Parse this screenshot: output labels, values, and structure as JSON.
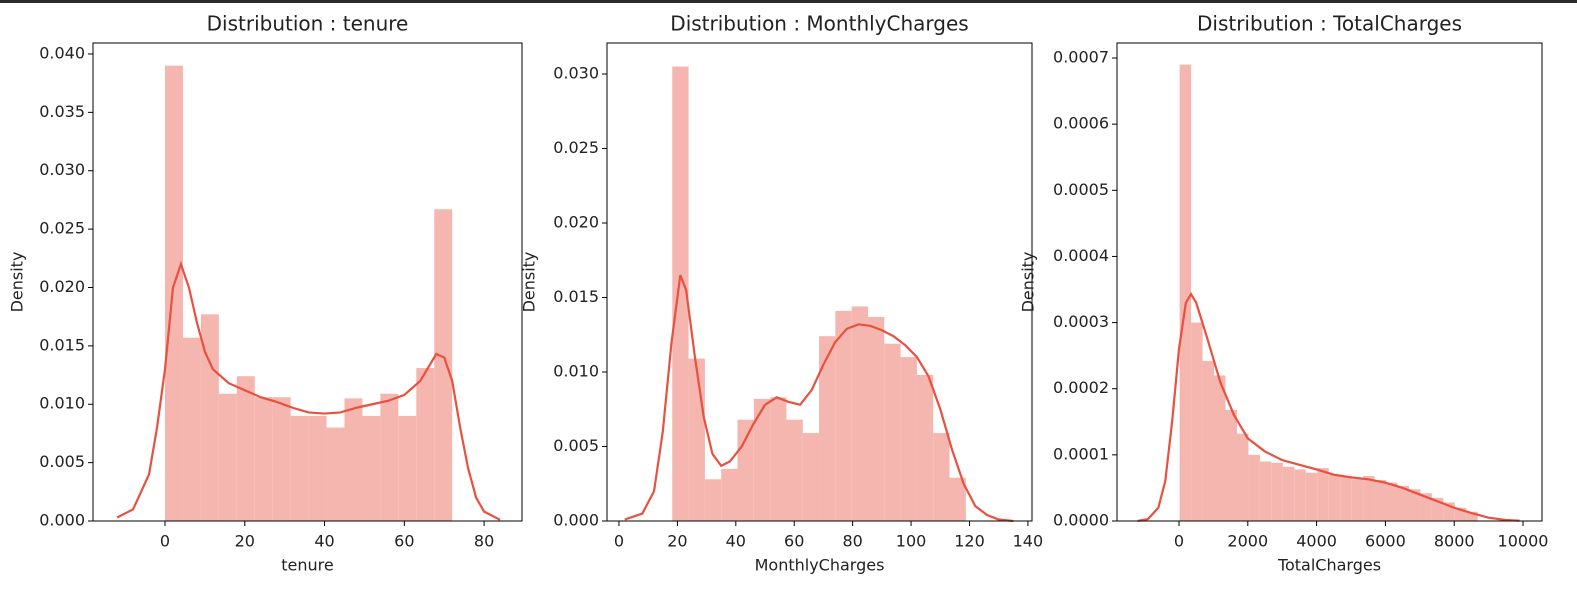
{
  "chart_data": [
    {
      "type": "histogram",
      "title": "Distribution : tenure",
      "xlabel": "tenure",
      "ylabel": "Density",
      "bins": [
        0,
        4.5,
        9,
        13.5,
        18,
        22.5,
        27,
        31.5,
        36,
        40.5,
        45,
        49.5,
        54,
        58.5,
        63,
        67.5,
        72
      ],
      "values": [
        0.039,
        0.0157,
        0.0177,
        0.0109,
        0.0124,
        0.0106,
        0.0106,
        0.009,
        0.009,
        0.008,
        0.0105,
        0.009,
        0.0109,
        0.009,
        0.0131,
        0.0267
      ],
      "color": "#f4b6ae",
      "kde": {
        "color": "#e8503f",
        "x": [
          -12,
          -8,
          -4,
          -2,
          0,
          2,
          4,
          6,
          8,
          10,
          12,
          16,
          20,
          24,
          28,
          32,
          36,
          40,
          44,
          48,
          52,
          56,
          60,
          64,
          68,
          70,
          72,
          74,
          76,
          78,
          80,
          84
        ],
        "y": [
          0.0003,
          0.001,
          0.004,
          0.008,
          0.013,
          0.02,
          0.022,
          0.02,
          0.017,
          0.0145,
          0.013,
          0.0118,
          0.0112,
          0.0106,
          0.0102,
          0.0097,
          0.0093,
          0.0092,
          0.0093,
          0.0097,
          0.01,
          0.0103,
          0.0108,
          0.012,
          0.0143,
          0.014,
          0.012,
          0.008,
          0.0045,
          0.002,
          0.0008,
          0.0001
        ]
      },
      "xlim": [
        -18.05,
        89.5
      ],
      "xticks": [
        0,
        20,
        40,
        60,
        80
      ],
      "ylim": [
        0,
        0.04094
      ],
      "yticks": [
        {
          "value": 0,
          "label": "0.000"
        },
        {
          "value": 0.005,
          "label": "0.005"
        },
        {
          "value": 0.01,
          "label": "0.010"
        },
        {
          "value": 0.015,
          "label": "0.015"
        },
        {
          "value": 0.02,
          "label": "0.020"
        },
        {
          "value": 0.025,
          "label": "0.025"
        },
        {
          "value": 0.03,
          "label": "0.030"
        },
        {
          "value": 0.035,
          "label": "0.035"
        },
        {
          "value": 0.04,
          "label": "0.040"
        }
      ]
    },
    {
      "type": "histogram",
      "title": "Distribution : MonthlyCharges",
      "xlabel": "MonthlyCharges",
      "ylabel": "Density",
      "bins": [
        18.25,
        23.83,
        29.42,
        35.0,
        40.58,
        46.17,
        51.75,
        57.33,
        62.92,
        68.5,
        74.08,
        79.67,
        85.25,
        90.83,
        96.42,
        102.0,
        107.58,
        113.17,
        118.75
      ],
      "values": [
        0.0305,
        0.0109,
        0.0028,
        0.0035,
        0.0068,
        0.0082,
        0.0083,
        0.0068,
        0.0059,
        0.0124,
        0.0141,
        0.0144,
        0.0137,
        0.0119,
        0.011,
        0.0098,
        0.0059,
        0.0029
      ],
      "color": "#f4b6ae",
      "kde": {
        "color": "#e8503f",
        "x": [
          2,
          8,
          12,
          15,
          18,
          21,
          23,
          26,
          29,
          32,
          35,
          38,
          42,
          46,
          50,
          54,
          58,
          62,
          66,
          70,
          74,
          78,
          82,
          86,
          90,
          94,
          98,
          102,
          106,
          110,
          114,
          118,
          122,
          126,
          130,
          135
        ],
        "y": [
          0.0001,
          0.0005,
          0.002,
          0.006,
          0.012,
          0.0165,
          0.0155,
          0.011,
          0.007,
          0.0045,
          0.0037,
          0.004,
          0.005,
          0.0065,
          0.0078,
          0.0083,
          0.008,
          0.0078,
          0.0088,
          0.0105,
          0.012,
          0.0129,
          0.0132,
          0.0131,
          0.0128,
          0.0124,
          0.0118,
          0.011,
          0.0097,
          0.0075,
          0.0048,
          0.0025,
          0.001,
          0.0004,
          0.0001,
          0
        ]
      },
      "xlim": [
        -4.1,
        141.4
      ],
      "xticks": [
        0,
        20,
        40,
        60,
        80,
        100,
        120,
        140
      ],
      "ylim": [
        0,
        0.03208
      ],
      "yticks": [
        {
          "value": 0,
          "label": "0.000"
        },
        {
          "value": 0.005,
          "label": "0.005"
        },
        {
          "value": 0.01,
          "label": "0.010"
        },
        {
          "value": 0.015,
          "label": "0.015"
        },
        {
          "value": 0.02,
          "label": "0.020"
        },
        {
          "value": 0.025,
          "label": "0.025"
        },
        {
          "value": 0.03,
          "label": "0.030"
        }
      ]
    },
    {
      "type": "histogram",
      "title": "Distribution : TotalCharges",
      "xlabel": "TotalCharges",
      "ylabel": "Density",
      "bins": [
        18.8,
        352.1,
        685.4,
        1018.7,
        1352.0,
        1685.3,
        2018.6,
        2351.9,
        2685.2,
        3018.5,
        3351.8,
        3685.1,
        4018.4,
        4351.7,
        4685.0,
        5018.3,
        5351.6,
        5684.9,
        6018.2,
        6351.5,
        6684.8,
        7018.1,
        7351.4,
        7684.7,
        8018.0,
        8351.3,
        8684.6
      ],
      "values": [
        0.00069,
        0.0003,
        0.000242,
        0.00022,
        0.000168,
        0.000132,
        0.0001,
        9e-05,
        8.8e-05,
        8.2e-05,
        7.8e-05,
        7.3e-05,
        8e-05,
        7e-05,
        6.8e-05,
        6.3e-05,
        6.8e-05,
        6.2e-05,
        5.8e-05,
        5.3e-05,
        4.8e-05,
        4.2e-05,
        3.5e-05,
        2.8e-05,
        2e-05,
        1.4e-05
      ],
      "color": "#f4b6ae",
      "kde": {
        "color": "#e8503f",
        "x": [
          -1200,
          -900,
          -600,
          -400,
          -200,
          0,
          200,
          350,
          500,
          800,
          1200,
          1600,
          2000,
          2500,
          3000,
          3500,
          4000,
          4500,
          5000,
          5500,
          6000,
          6500,
          7000,
          7500,
          8000,
          8500,
          9000,
          9500,
          9900
        ],
        "y": [
          0,
          3e-06,
          2e-05,
          6e-05,
          0.00015,
          0.00026,
          0.00033,
          0.000343,
          0.00033,
          0.00028,
          0.00021,
          0.00016,
          0.000125,
          0.000105,
          9.2e-05,
          8.5e-05,
          7.8e-05,
          7e-05,
          6.6e-05,
          6.3e-05,
          5.8e-05,
          5e-05,
          4e-05,
          3e-05,
          2e-05,
          1.2e-05,
          5e-06,
          1.5e-06,
          5e-07
        ]
      },
      "xlim": [
        -1802,
        10552
      ],
      "xticks": [
        0,
        2000,
        4000,
        6000,
        8000,
        10000
      ],
      "ylim": [
        0,
        0.0007227
      ],
      "yticks": [
        {
          "value": 0,
          "label": "0.0000"
        },
        {
          "value": 0.0001,
          "label": "0.0001"
        },
        {
          "value": 0.0002,
          "label": "0.0002"
        },
        {
          "value": 0.0003,
          "label": "0.0003"
        },
        {
          "value": 0.0004,
          "label": "0.0004"
        },
        {
          "value": 0.0005,
          "label": "0.0005"
        },
        {
          "value": 0.0006,
          "label": "0.0006"
        },
        {
          "value": 0.0007,
          "label": "0.0007"
        }
      ]
    }
  ]
}
